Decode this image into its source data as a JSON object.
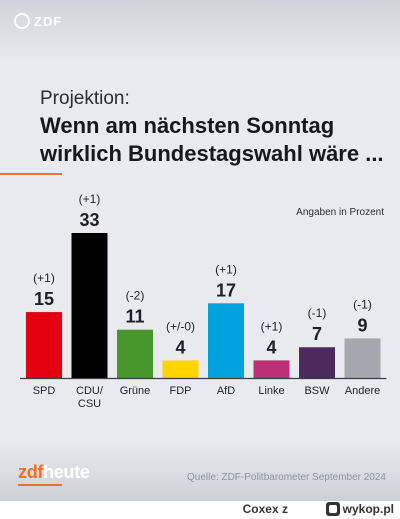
{
  "header": {
    "watermark": "ZDF"
  },
  "kicker": "Projektion:",
  "headline_line1": "Wenn am nächsten Sonntag",
  "headline_line2": "wirklich Bundestagswahl wäre ...",
  "unit_note": "Angaben in Prozent",
  "footer": {
    "logo_zdf": "zdf",
    "logo_heute": "heute",
    "source": "Quelle: ZDF-Politbarometer September 2024"
  },
  "credit": {
    "user": "Coxex",
    "connector": "z",
    "site": "wykop.pl"
  },
  "colors": {
    "background": "#e8eaed",
    "accent": "#f36f21",
    "axis": "#3a3d42"
  },
  "chart_data": {
    "type": "bar",
    "title": "Wenn am nächsten Sonntag wirklich Bundestagswahl wäre ...",
    "unit": "Angaben in Prozent",
    "categories": [
      "SPD",
      "CDU/\nCSU",
      "Grüne",
      "FDP",
      "AfD",
      "Linke",
      "BSW",
      "Andere"
    ],
    "values": [
      15,
      33,
      11,
      4,
      17,
      4,
      7,
      9
    ],
    "changes": [
      "(+1)",
      "(+1)",
      "(-2)",
      "(+/-0)",
      "(+1)",
      "(+1)",
      "(-1)",
      "(-1)"
    ],
    "colors": [
      "#e3000f",
      "#000000",
      "#46962b",
      "#ffd400",
      "#00a2de",
      "#be3075",
      "#4b2a5e",
      "#a4a8ae"
    ],
    "ylim": [
      0,
      33
    ],
    "grid": false,
    "legend": "none"
  }
}
